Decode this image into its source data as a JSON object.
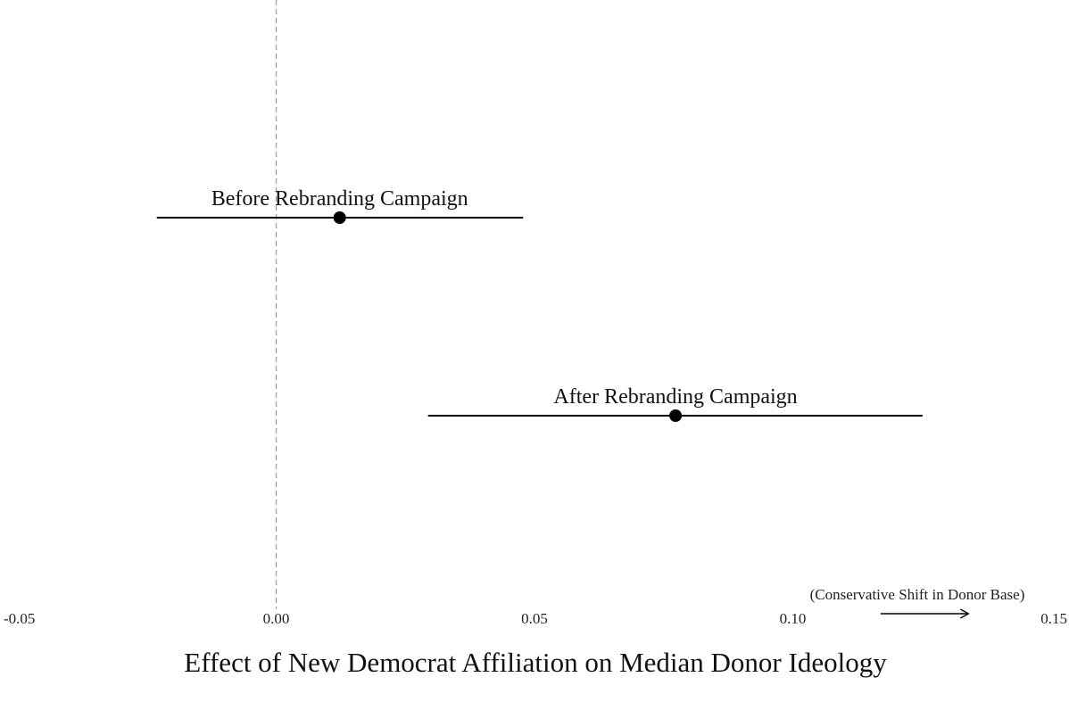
{
  "chart_data": {
    "type": "scatter",
    "xlabel": "Effect of New Democrat Affiliation on Median Donor Ideology",
    "xlim": [
      -0.05,
      0.15
    ],
    "x_ticks": [
      -0.05,
      0.0,
      0.05,
      0.1,
      0.15
    ],
    "x_tick_labels": [
      "-0.05",
      "0.00",
      "0.05",
      "0.10",
      "0.15"
    ],
    "grid": false,
    "reference_line": {
      "x": 0,
      "style": "dashed",
      "color": "#f08080"
    },
    "series": [
      {
        "name": "Before Rebranding Campaign",
        "estimate": 0.0123,
        "ci_low": -0.0231,
        "ci_high": 0.0478
      },
      {
        "name": "After Rebranding Campaign",
        "estimate": 0.0773,
        "ci_low": 0.0294,
        "ci_high": 0.1251
      }
    ],
    "annotation": {
      "text": "(Conservative Shift in Donor Base)",
      "arrow_from": 0.117,
      "arrow_to": 0.134,
      "arrow_direction": "right"
    },
    "colors": {
      "point": "#000000",
      "interval": "#000000",
      "reference_line": "#f08080"
    }
  }
}
